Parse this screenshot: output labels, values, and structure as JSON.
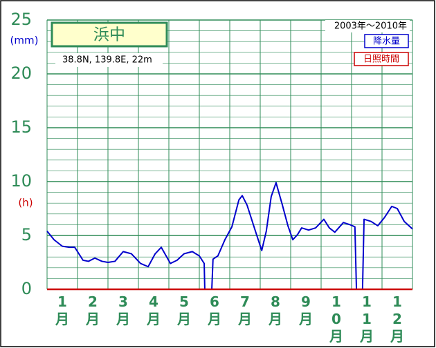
{
  "chart_data": {
    "type": "line",
    "station": "浜中",
    "location": "38.8N,  139.8E,  22m",
    "period": "2003年〜2010年",
    "y_unit_left": "(mm)",
    "y_unit_right": "(h)",
    "categories": [
      "1月",
      "2月",
      "3月",
      "4月",
      "5月",
      "6月",
      "7月",
      "8月",
      "9月",
      "10月",
      "11月",
      "12月"
    ],
    "category_x": [
      1,
      2,
      3,
      4,
      5,
      6,
      7,
      8,
      9,
      10,
      11,
      12
    ],
    "xlim": [
      0.5,
      12.5
    ],
    "ylim": [
      0,
      25
    ],
    "yticks": [
      0,
      5,
      10,
      15,
      20,
      25
    ],
    "grid": true,
    "series": [
      {
        "name": "降水量",
        "color": "#0000cc",
        "x": [
          0.5,
          0.73,
          1.0,
          1.23,
          1.41,
          1.68,
          1.86,
          2.07,
          2.3,
          2.5,
          2.73,
          3.0,
          3.27,
          3.57,
          3.82,
          4.05,
          4.25,
          4.55,
          4.77,
          5.0,
          5.27,
          5.5,
          5.66,
          5.68,
          5.91,
          5.95,
          6.11,
          6.34,
          6.57,
          6.8,
          6.91,
          7.07,
          7.32,
          7.55,
          7.7,
          7.86,
          8.02,
          8.23,
          8.41,
          8.57,
          8.73,
          8.86,
          9.09,
          9.32,
          9.59,
          9.77,
          9.95,
          10.23,
          10.45,
          10.61,
          10.66,
          10.86,
          10.91,
          11.14,
          11.36,
          11.59,
          11.82,
          12.0,
          12.23,
          12.5
        ],
        "values": [
          5.4,
          4.6,
          4.0,
          3.9,
          3.9,
          2.7,
          2.6,
          2.9,
          2.6,
          2.5,
          2.6,
          3.5,
          3.3,
          2.4,
          2.1,
          3.3,
          3.9,
          2.4,
          2.7,
          3.3,
          3.5,
          3.1,
          2.4,
          0,
          0,
          2.8,
          3.1,
          4.6,
          5.8,
          8.3,
          8.7,
          7.8,
          5.6,
          3.6,
          5.4,
          8.6,
          9.9,
          7.8,
          5.9,
          4.6,
          5.1,
          5.7,
          5.5,
          5.7,
          6.5,
          5.7,
          5.3,
          6.2,
          6.0,
          5.8,
          0,
          0,
          6.5,
          6.3,
          5.9,
          6.7,
          7.7,
          7.5,
          6.3,
          5.6
        ]
      },
      {
        "name": "日照時間",
        "color": "#cc0000",
        "x": [
          0.5,
          12.5
        ],
        "values": [
          0,
          0
        ]
      }
    ]
  }
}
